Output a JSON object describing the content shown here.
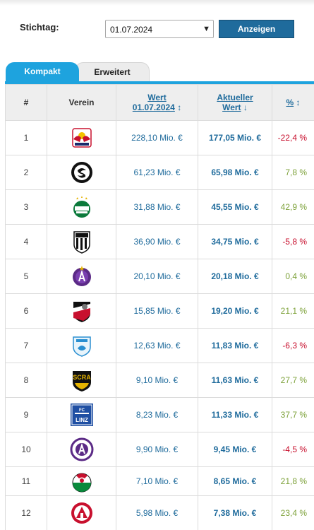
{
  "filter": {
    "label": "Stichtag:",
    "date_value": "01.07.2024",
    "button_label": "Anzeigen"
  },
  "tabs": [
    {
      "label": "Kompakt",
      "active": true
    },
    {
      "label": "Erweitert",
      "active": false
    }
  ],
  "table": {
    "headers": {
      "rank": "#",
      "club": "Verein",
      "wert_line1": "Wert",
      "wert_line2": "01.07.2024",
      "wert_sort": "↕",
      "aktuell_line1": "Aktueller",
      "aktuell_line2": "Wert",
      "aktuell_sort": "↓",
      "pct": "%",
      "pct_sort": "↕"
    },
    "rows": [
      {
        "rank": "1",
        "club_logo": "red-bull-salzburg-logo",
        "wert": "228,10 Mio. €",
        "aktuell": "177,05 Mio. €",
        "pct": "-22,4 %",
        "trend": "neg"
      },
      {
        "rank": "2",
        "club_logo": "sturm-graz-logo",
        "wert": "61,23 Mio. €",
        "aktuell": "65,98 Mio. €",
        "pct": "7,8 %",
        "trend": "pos"
      },
      {
        "rank": "3",
        "club_logo": "rapid-wien-logo",
        "wert": "31,88 Mio. €",
        "aktuell": "45,55 Mio. €",
        "pct": "42,9 %",
        "trend": "pos"
      },
      {
        "rank": "4",
        "club_logo": "lask-logo",
        "wert": "36,90 Mio. €",
        "aktuell": "34,75 Mio. €",
        "pct": "-5,8 %",
        "trend": "neg"
      },
      {
        "rank": "5",
        "club_logo": "austria-wien-logo",
        "wert": "20,10 Mio. €",
        "aktuell": "20,18 Mio. €",
        "pct": "0,4 %",
        "trend": "pos"
      },
      {
        "rank": "6",
        "club_logo": "wolfsberger-ac-logo",
        "wert": "15,85 Mio. €",
        "aktuell": "19,20 Mio. €",
        "pct": "21,1 %",
        "trend": "pos"
      },
      {
        "rank": "7",
        "club_logo": "tsv-hartberg-logo",
        "wert": "12,63 Mio. €",
        "aktuell": "11,83 Mio. €",
        "pct": "-6,3 %",
        "trend": "neg"
      },
      {
        "rank": "8",
        "club_logo": "scr-altach-logo",
        "wert": "9,10 Mio. €",
        "aktuell": "11,63 Mio. €",
        "pct": "27,7 %",
        "trend": "pos"
      },
      {
        "rank": "9",
        "club_logo": "blau-weiss-linz-logo",
        "wert": "8,23 Mio. €",
        "aktuell": "11,33 Mio. €",
        "pct": "37,7 %",
        "trend": "pos"
      },
      {
        "rank": "10",
        "club_logo": "austria-klagenfurt-logo",
        "wert": "9,90 Mio. €",
        "aktuell": "9,45 Mio. €",
        "pct": "-4,5 %",
        "trend": "neg"
      },
      {
        "rank": "11",
        "club_logo": "wsg-tirol-logo",
        "wert": "7,10 Mio. €",
        "aktuell": "8,65 Mio. €",
        "pct": "21,8 %",
        "trend": "pos"
      },
      {
        "rank": "12",
        "club_logo": "grazer-ak-logo",
        "wert": "5,98 Mio. €",
        "aktuell": "7,38 Mio. €",
        "pct": "23,4 %",
        "trend": "pos"
      }
    ]
  },
  "colors": {
    "accent": "#1ea3de",
    "link": "#1f6b9c",
    "positive": "#7ea23b",
    "negative": "#c8102e"
  }
}
